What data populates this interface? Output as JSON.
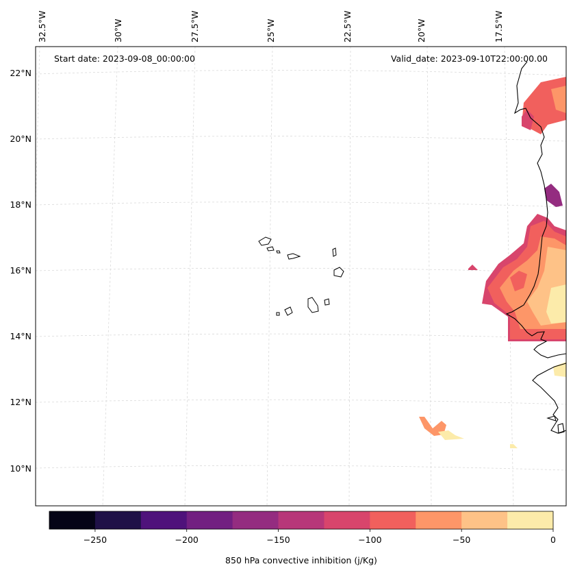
{
  "map": {
    "start_date": "Start date: 2023-09-08_00:00:00",
    "valid_date": "Valid_date: 2023-09-10T22:00:00.00",
    "lon_labels": [
      "32.5°W",
      "30°W",
      "27.5°W",
      "25°W",
      "22.5°W",
      "20°W",
      "17.5°W"
    ],
    "lat_labels": [
      "22°N",
      "20°N",
      "18°N",
      "16°N",
      "14°N",
      "12°N",
      "10°N"
    ],
    "colors": {
      "land_outline": "#000000",
      "gridline": "#cccccc"
    }
  },
  "colorbar": {
    "label": "850 hPa convective inhibition (j/Kg)",
    "tick_labels": [
      "−250",
      "−200",
      "−150",
      "−100",
      "−50",
      "0"
    ],
    "tick_values": [
      -250,
      -200,
      -150,
      -100,
      -50,
      0
    ],
    "min": -275,
    "max": 0,
    "levels": [
      -275,
      -250,
      -225,
      -200,
      -175,
      -150,
      -125,
      -100,
      -75,
      -50,
      -25,
      0
    ],
    "colors": [
      "#050416",
      "#1f1147",
      "#4f127b",
      "#721f81",
      "#942c80",
      "#b73779",
      "#d8456c",
      "#f1605d",
      "#fd9668",
      "#fec287",
      "#fcebaa"
    ]
  }
}
